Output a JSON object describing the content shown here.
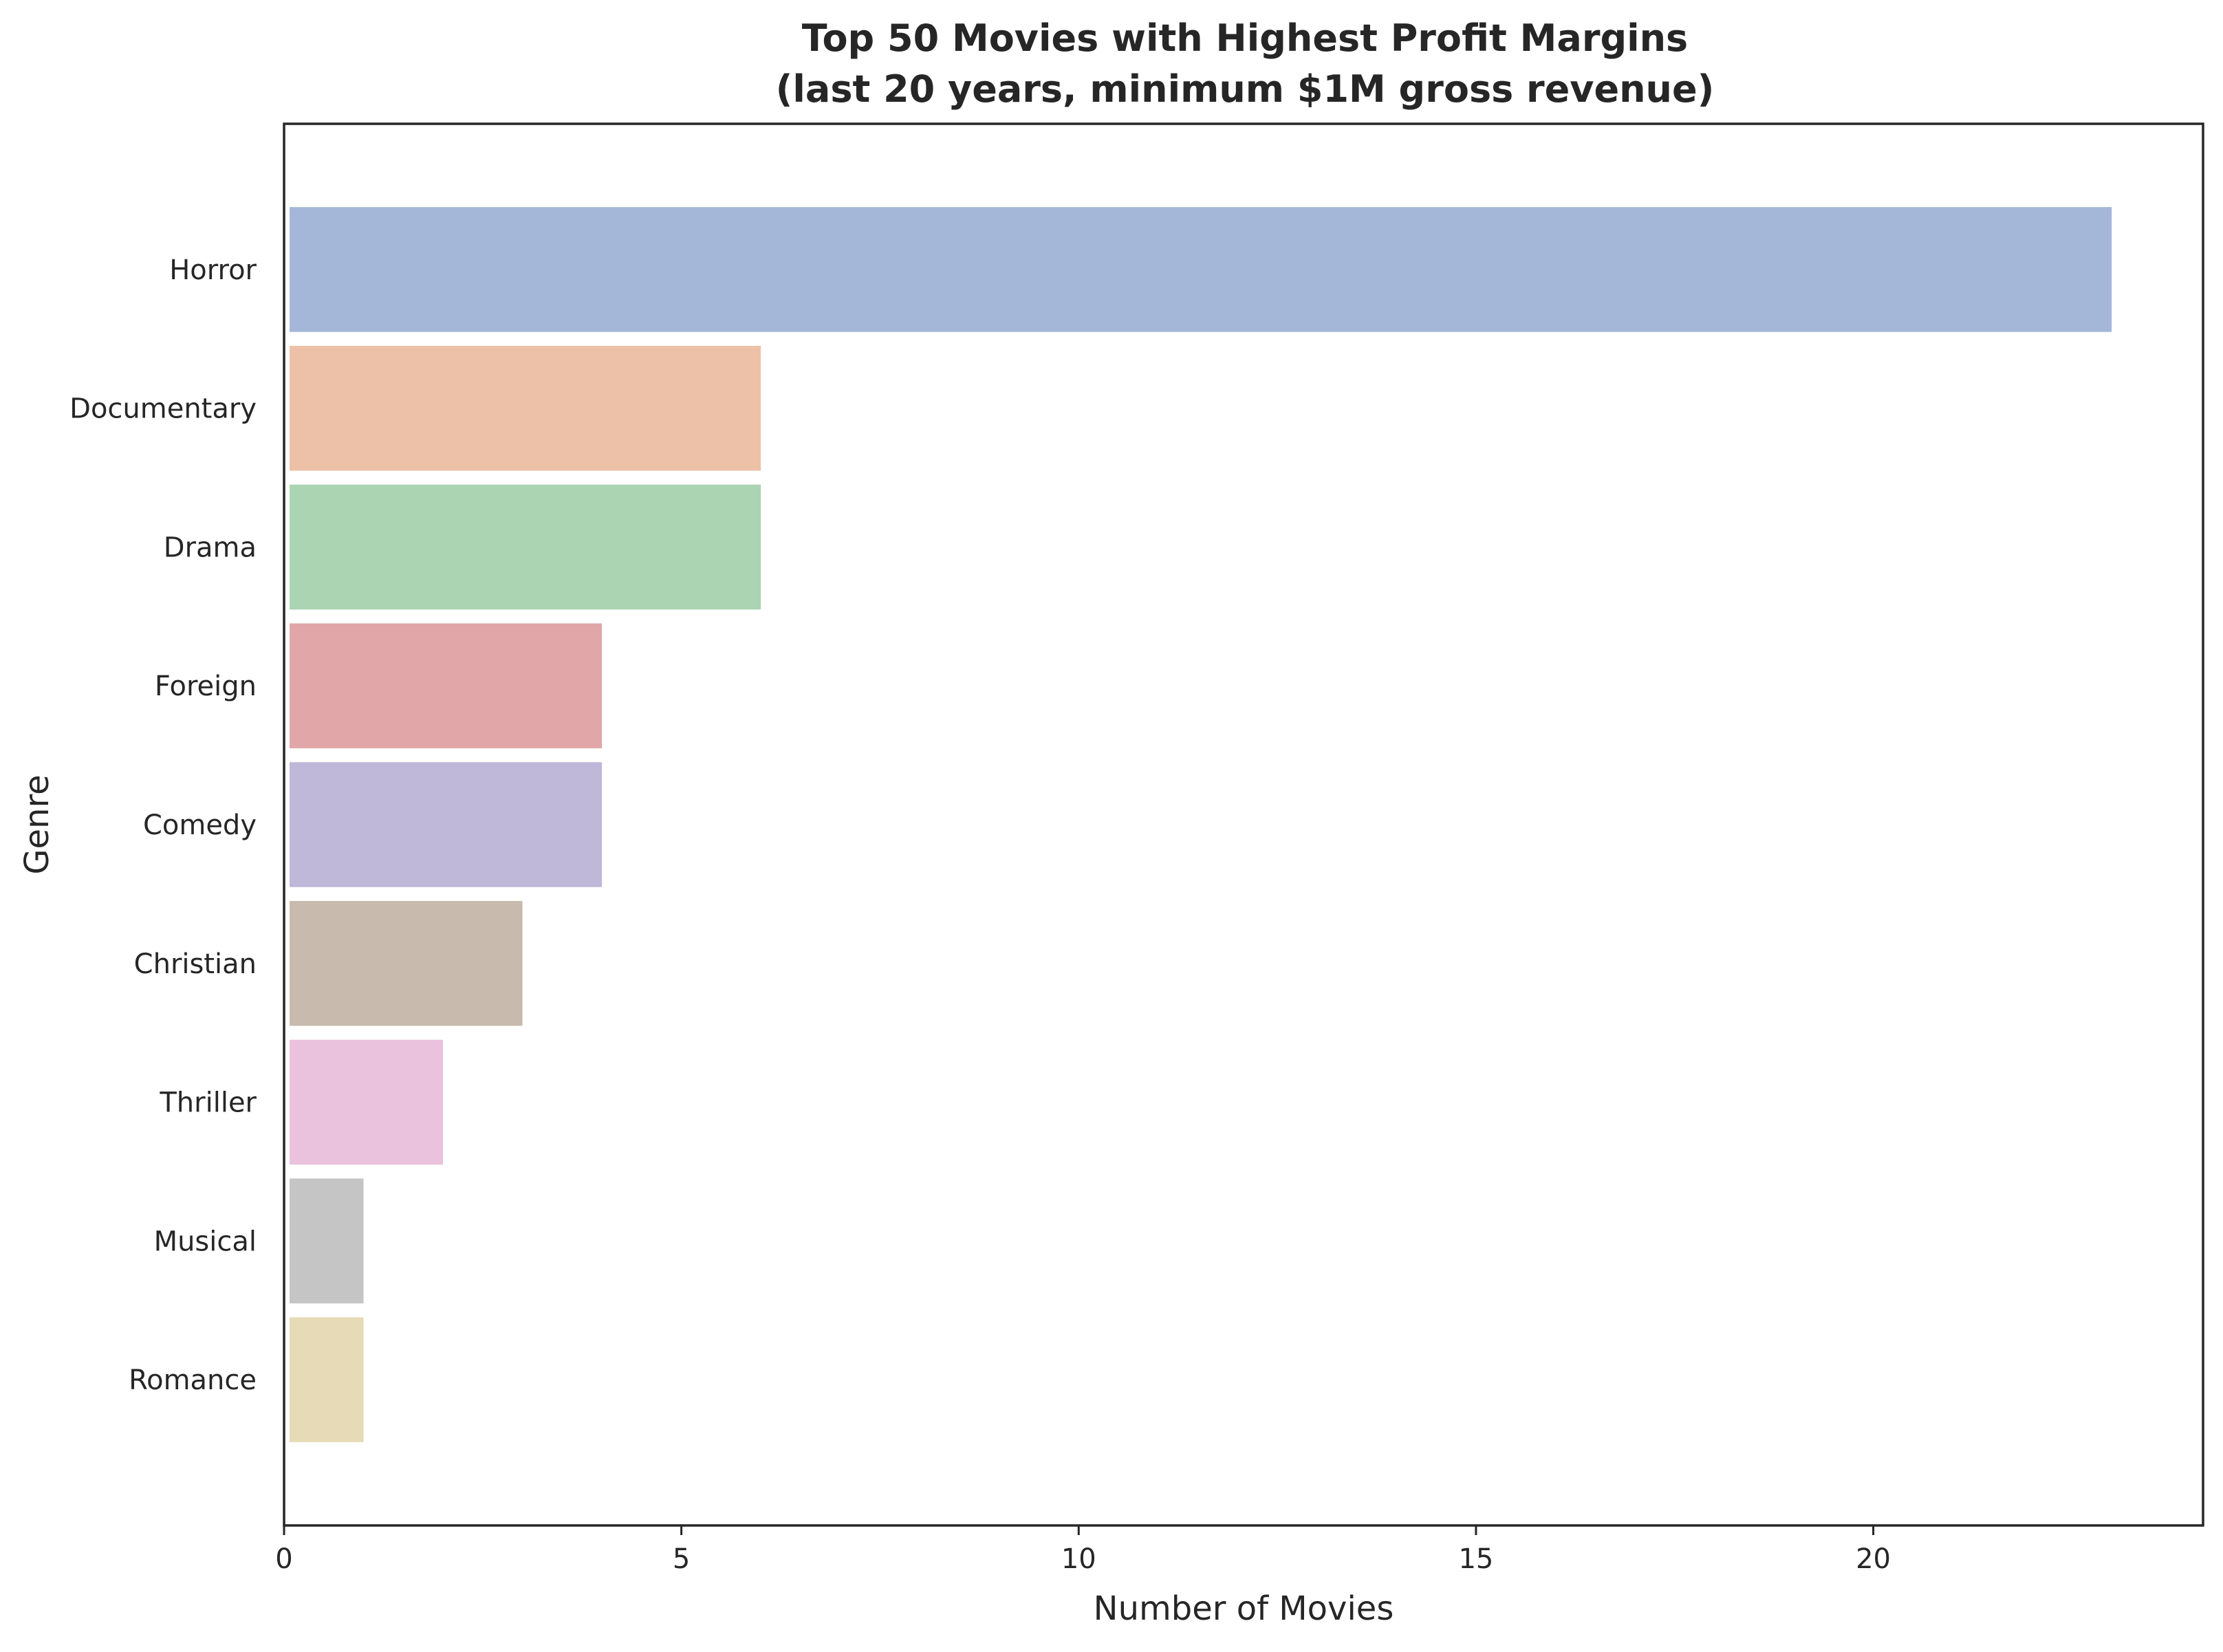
{
  "chart_data": {
    "type": "bar",
    "orientation": "horizontal",
    "title": [
      "Top 50 Movies with Highest Profit Margins",
      "(last 20 years, minimum $1M gross revenue)"
    ],
    "xlabel": "Number of Movies",
    "ylabel": "Genre",
    "categories": [
      "Horror",
      "Documentary",
      "Drama",
      "Foreign",
      "Comedy",
      "Christian",
      "Thriller",
      "Musical",
      "Romance"
    ],
    "values": [
      23,
      6,
      6,
      4,
      4,
      3,
      2,
      1,
      1
    ],
    "colors": [
      "#a5b7d8",
      "#edc1a8",
      "#aad4b2",
      "#e1a6a7",
      "#bfb8d9",
      "#c8bbae",
      "#ebc2de",
      "#c5c5c5",
      "#e6dbb6"
    ],
    "xlim": [
      0,
      24.15
    ],
    "xticks": [
      0,
      5,
      10,
      15,
      20
    ],
    "grid": false,
    "legend": "none"
  }
}
